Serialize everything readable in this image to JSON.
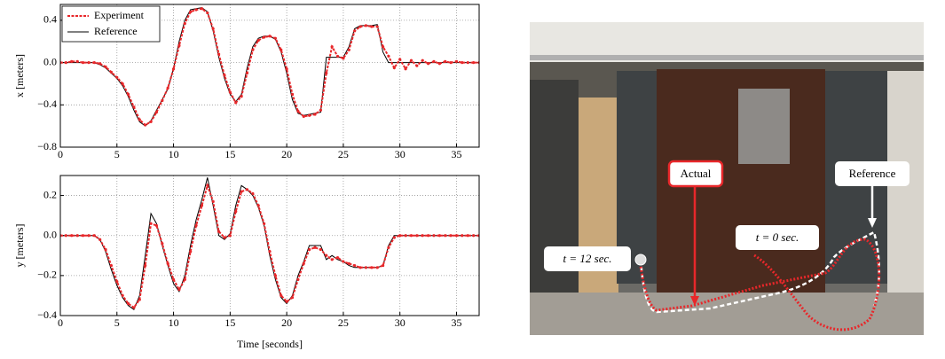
{
  "chart_data": [
    {
      "type": "line",
      "ylabel": "x [meters]",
      "x": [
        0,
        0.5,
        1,
        1.5,
        2,
        2.5,
        3,
        3.5,
        4,
        4.5,
        5,
        5.5,
        6,
        6.5,
        7,
        7.5,
        8,
        8.5,
        9,
        9.5,
        10,
        10.5,
        11,
        11.5,
        12,
        12.5,
        13,
        13.5,
        14,
        14.5,
        15,
        15.5,
        16,
        16.5,
        17,
        17.5,
        18,
        18.5,
        19,
        19.5,
        20,
        20.5,
        21,
        21.5,
        22,
        22.5,
        23,
        23.5,
        24,
        24.5,
        25,
        25.5,
        26,
        26.5,
        27,
        27.5,
        28,
        28.5,
        29,
        29.5,
        30,
        30.5,
        31,
        31.5,
        32,
        32.5,
        33,
        33.5,
        34,
        34.5,
        35,
        35.5,
        36,
        36.5,
        37
      ],
      "series": [
        {
          "name": "Experiment",
          "color": "#e8272a",
          "values": [
            0,
            0,
            0.01,
            0.01,
            0,
            0,
            0,
            -0.01,
            -0.04,
            -0.09,
            -0.14,
            -0.2,
            -0.3,
            -0.42,
            -0.54,
            -0.59,
            -0.56,
            -0.47,
            -0.36,
            -0.24,
            -0.06,
            0.16,
            0.37,
            0.48,
            0.5,
            0.51,
            0.47,
            0.32,
            0.08,
            -0.12,
            -0.28,
            -0.38,
            -0.32,
            -0.1,
            0.12,
            0.21,
            0.24,
            0.25,
            0.23,
            0.12,
            -0.06,
            -0.3,
            -0.46,
            -0.51,
            -0.5,
            -0.49,
            -0.45,
            -0.1,
            0.15,
            0.06,
            0.04,
            0.12,
            0.3,
            0.34,
            0.35,
            0.34,
            0.34,
            0.15,
            0.06,
            -0.05,
            0.03,
            -0.06,
            0.02,
            -0.03,
            0.02,
            -0.01,
            0.01,
            -0.01,
            0.01,
            0,
            0.01,
            0,
            0,
            0,
            0
          ]
        },
        {
          "name": "Reference",
          "color": "#000000",
          "values": [
            0,
            0,
            0,
            0,
            0,
            0,
            0,
            -0.02,
            -0.05,
            -0.1,
            -0.15,
            -0.22,
            -0.32,
            -0.45,
            -0.56,
            -0.6,
            -0.55,
            -0.45,
            -0.35,
            -0.25,
            -0.05,
            0.2,
            0.4,
            0.5,
            0.51,
            0.52,
            0.48,
            0.3,
            0.05,
            -0.15,
            -0.3,
            -0.37,
            -0.3,
            -0.05,
            0.15,
            0.23,
            0.25,
            0.25,
            0.22,
            0.1,
            -0.1,
            -0.35,
            -0.48,
            -0.5,
            -0.49,
            -0.48,
            -0.47,
            0.05,
            0.05,
            0.05,
            0.05,
            0.15,
            0.32,
            0.35,
            0.35,
            0.35,
            0.36,
            0.1,
            0,
            0,
            0,
            0,
            0,
            0,
            0,
            0,
            0,
            0,
            0,
            0,
            0,
            0,
            0,
            0,
            0
          ]
        }
      ],
      "xlim": [
        0,
        37
      ],
      "xticks": [
        0,
        5,
        10,
        15,
        20,
        25,
        30,
        35
      ],
      "ylim": [
        -0.8,
        0.55
      ],
      "yticks": [
        {
          "value": -0.8,
          "label": "−0.8"
        },
        {
          "value": -0.4,
          "label": "−0.4"
        },
        {
          "value": 0,
          "label": "0.0"
        },
        0.4
      ],
      "grid": true,
      "legend": "upper left"
    },
    {
      "type": "line",
      "ylabel": "y [meters]",
      "xlabel": "Time [seconds]",
      "x": [
        0,
        0.5,
        1,
        1.5,
        2,
        2.5,
        3,
        3.5,
        4,
        4.5,
        5,
        5.5,
        6,
        6.5,
        7,
        7.5,
        8,
        8.5,
        9,
        9.5,
        10,
        10.5,
        11,
        11.5,
        12,
        12.5,
        13,
        13.5,
        14,
        14.5,
        15,
        15.5,
        16,
        16.5,
        17,
        17.5,
        18,
        18.5,
        19,
        19.5,
        20,
        20.5,
        21,
        21.5,
        22,
        22.5,
        23,
        23.5,
        24,
        24.5,
        25,
        25.5,
        26,
        26.5,
        27,
        27.5,
        28,
        28.5,
        29,
        29.5,
        30,
        30.5,
        31,
        31.5,
        32,
        32.5,
        33,
        33.5,
        34,
        34.5,
        35,
        35.5,
        36,
        36.5,
        37
      ],
      "series": [
        {
          "color": "#e8272a",
          "values": [
            0,
            0,
            0,
            0,
            0,
            0,
            0,
            -0.02,
            -0.07,
            -0.15,
            -0.23,
            -0.3,
            -0.34,
            -0.36,
            -0.32,
            -0.15,
            0.06,
            0.05,
            -0.04,
            -0.14,
            -0.22,
            -0.27,
            -0.22,
            -0.08,
            0.05,
            0.15,
            0.25,
            0.17,
            0.02,
            -0.01,
            0,
            0.12,
            0.22,
            0.23,
            0.21,
            0.15,
            0.06,
            -0.08,
            -0.2,
            -0.3,
            -0.33,
            -0.31,
            -0.22,
            -0.14,
            -0.07,
            -0.06,
            -0.07,
            -0.1,
            -0.12,
            -0.11,
            -0.13,
            -0.14,
            -0.15,
            -0.16,
            -0.16,
            -0.16,
            -0.16,
            -0.15,
            -0.06,
            -0.01,
            0,
            0,
            0,
            0,
            0,
            0,
            0,
            0,
            0,
            0,
            0,
            0,
            0,
            0,
            0
          ]
        },
        {
          "color": "#000000",
          "values": [
            0,
            0,
            0,
            0,
            0,
            0,
            0,
            -0.02,
            -0.08,
            -0.17,
            -0.25,
            -0.31,
            -0.35,
            -0.37,
            -0.3,
            -0.1,
            0.11,
            0.06,
            -0.05,
            -0.15,
            -0.24,
            -0.28,
            -0.2,
            -0.05,
            0.08,
            0.18,
            0.29,
            0.15,
            0,
            -0.02,
            0.01,
            0.15,
            0.25,
            0.23,
            0.2,
            0.14,
            0.05,
            -0.1,
            -0.22,
            -0.31,
            -0.34,
            -0.3,
            -0.2,
            -0.13,
            -0.05,
            -0.05,
            -0.05,
            -0.12,
            -0.1,
            -0.12,
            -0.13,
            -0.15,
            -0.16,
            -0.16,
            -0.16,
            -0.16,
            -0.16,
            -0.15,
            -0.05,
            0,
            0,
            0,
            0,
            0,
            0,
            0,
            0,
            0,
            0,
            0,
            0,
            0,
            0,
            0,
            0
          ]
        }
      ],
      "xlim": [
        0,
        37
      ],
      "xticks": [
        0,
        5,
        10,
        15,
        20,
        25,
        30,
        35
      ],
      "ylim": [
        -0.4,
        0.3
      ],
      "yticks": [
        {
          "value": -0.4,
          "label": "−0.4"
        },
        {
          "value": -0.2,
          "label": "−0.2"
        },
        {
          "value": 0,
          "label": "0.0"
        },
        0.2
      ],
      "grid": true
    }
  ],
  "image_annotations": {
    "actual": "Actual",
    "reference": "Reference",
    "t_end": "t = 12 sec.",
    "t_start": "t = 0 sec."
  }
}
